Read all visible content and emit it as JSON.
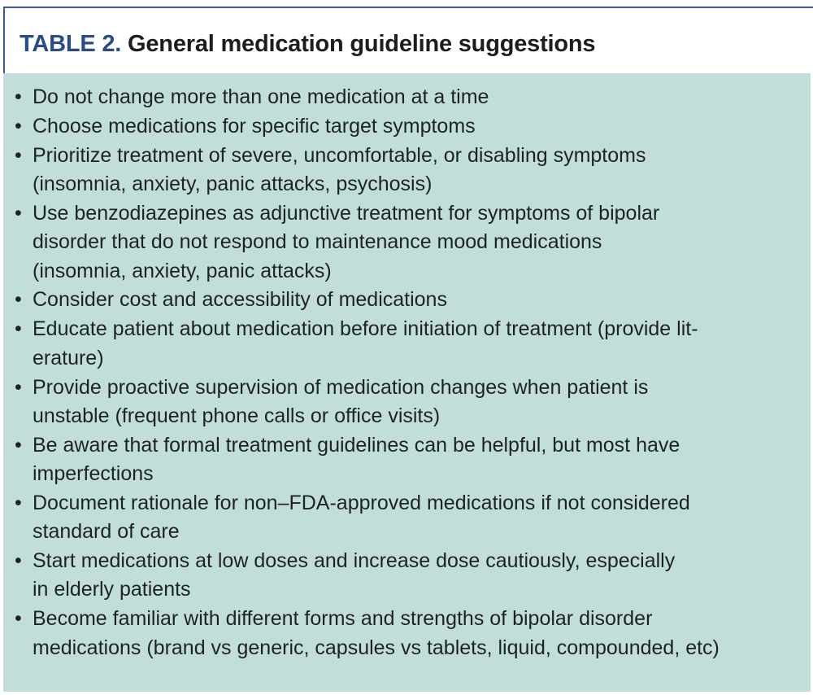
{
  "header": {
    "label": "TABLE 2.",
    "title": "General medication guideline suggestions"
  },
  "colors": {
    "label": "#2b4a8c",
    "background": "#c2dedb",
    "border": "#3b5a99"
  },
  "items": [
    {
      "lines": [
        "Do not change more than one medication at a time"
      ]
    },
    {
      "lines": [
        "Choose medications for specific target symptoms"
      ]
    },
    {
      "lines": [
        "Prioritize treatment of severe, uncomfortable, or disabling symptoms",
        "(insomnia, anxiety, panic attacks, psychosis)"
      ]
    },
    {
      "lines": [
        "Use benzodiazepines as adjunctive treatment for symptoms of bipolar",
        "disorder that do not respond to maintenance mood medications",
        "(insomnia, anxiety, panic attacks)"
      ]
    },
    {
      "lines": [
        "Consider cost and accessibility of medications"
      ]
    },
    {
      "lines": [
        "Educate patient about medication before initiation of treatment (provide lit-",
        "erature)"
      ]
    },
    {
      "lines": [
        "Provide proactive supervision of medication changes when patient is",
        "unstable (frequent phone calls or office visits)"
      ]
    },
    {
      "lines": [
        "Be aware that formal treatment guidelines can be helpful, but most have",
        "imperfections"
      ]
    },
    {
      "lines": [
        "Document rationale for non–FDA-approved medications if not considered",
        "standard of care"
      ]
    },
    {
      "lines": [
        "Start medications at low doses and increase dose cautiously, especially",
        "in elderly patients"
      ]
    },
    {
      "lines": [
        "Become familiar with different forms and strengths of bipolar disorder",
        "medications (brand vs generic, capsules vs tablets, liquid, compounded, etc)"
      ]
    }
  ]
}
